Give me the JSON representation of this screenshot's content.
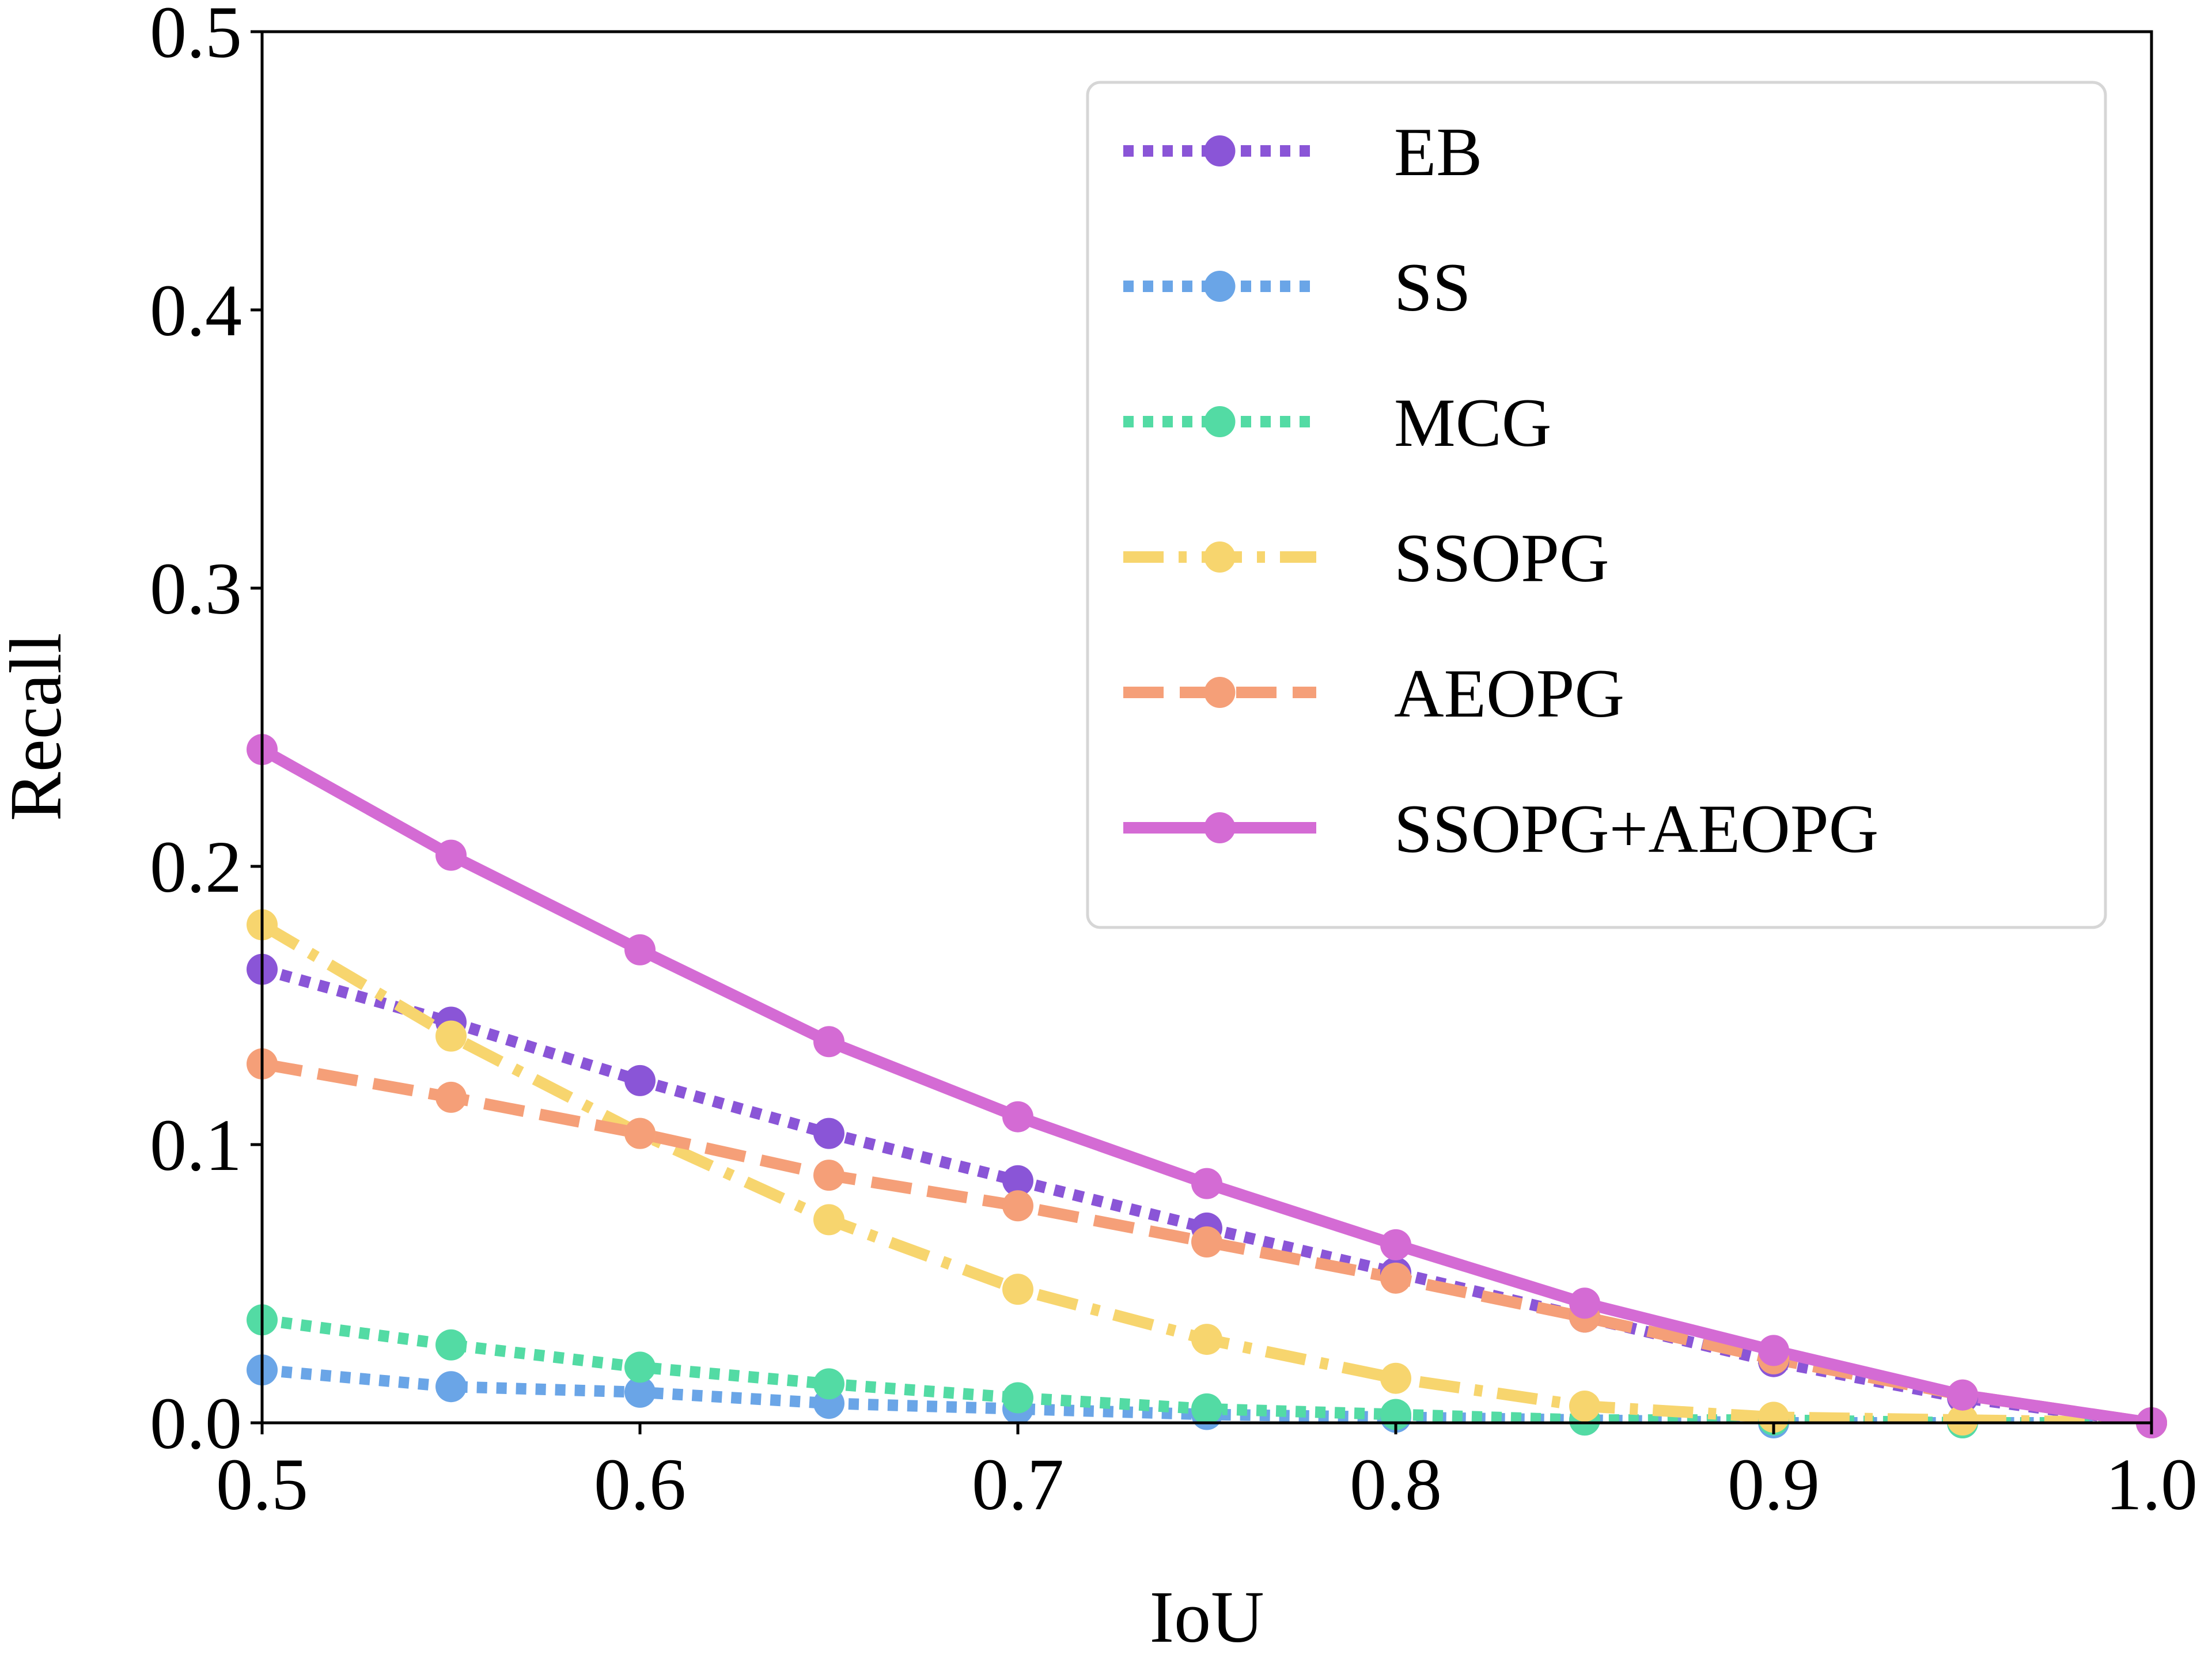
{
  "chart_data": {
    "type": "line",
    "title": "",
    "xlabel": "IoU",
    "ylabel": "Recall",
    "xlim": [
      0.5,
      1.0
    ],
    "ylim": [
      0.0,
      0.5
    ],
    "grid": false,
    "legend_position": "top-right",
    "x": [
      0.5,
      0.55,
      0.6,
      0.65,
      0.7,
      0.75,
      0.8,
      0.85,
      0.9,
      0.95,
      1.0
    ],
    "xticks": [
      "0.5",
      "0.6",
      "0.7",
      "0.8",
      "0.9",
      "1.0"
    ],
    "yticks": [
      "0.0",
      "0.1",
      "0.2",
      "0.3",
      "0.4",
      "0.5"
    ],
    "series": [
      {
        "name": "EB",
        "color": "#8a55d7",
        "style": "dotted",
        "values": [
          0.163,
          0.144,
          0.123,
          0.104,
          0.087,
          0.07,
          0.054,
          0.038,
          0.022,
          0.009,
          0.0
        ]
      },
      {
        "name": "SS",
        "color": "#6aa5e7",
        "style": "dotted",
        "values": [
          0.019,
          0.013,
          0.011,
          0.007,
          0.005,
          0.003,
          0.002,
          0.001,
          0.0,
          0.0,
          0.0
        ]
      },
      {
        "name": "MCG",
        "color": "#53dba4",
        "style": "dotted",
        "values": [
          0.037,
          0.028,
          0.02,
          0.014,
          0.009,
          0.005,
          0.003,
          0.001,
          0.001,
          0.0,
          0.0
        ]
      },
      {
        "name": "SSOPG",
        "color": "#f7d56e",
        "style": "dashdot",
        "values": [
          0.179,
          0.139,
          0.104,
          0.073,
          0.048,
          0.03,
          0.016,
          0.006,
          0.002,
          0.001,
          0.0
        ]
      },
      {
        "name": "AEOPG",
        "color": "#f59f78",
        "style": "dashed",
        "values": [
          0.129,
          0.117,
          0.104,
          0.089,
          0.078,
          0.065,
          0.052,
          0.038,
          0.023,
          0.01,
          0.0
        ]
      },
      {
        "name": "SSOPG+AEOPG",
        "color": "#d46bd4",
        "style": "solid",
        "values": [
          0.242,
          0.204,
          0.17,
          0.137,
          0.11,
          0.086,
          0.064,
          0.043,
          0.026,
          0.01,
          0.0
        ]
      }
    ]
  }
}
